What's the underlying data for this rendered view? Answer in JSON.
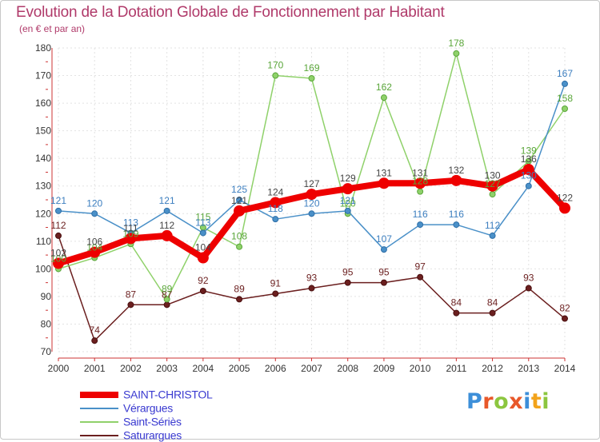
{
  "header": {
    "title": "Evolution de la Dotation Globale de Fonctionnement par Habitant",
    "subtitle": "(en € et par an)"
  },
  "logo": {
    "text": "Proxiti",
    "colors": [
      "#3d8fd9",
      "#e8582a",
      "#8cc63f",
      "#e8582a",
      "#3d8fd9",
      "#f2a31b",
      "#8cc63f"
    ]
  },
  "chart_data": {
    "type": "line",
    "title": "Evolution de la Dotation Globale de Fonctionnement par Habitant",
    "subtitle": "(en € et par an)",
    "xlabel": "",
    "ylabel": "",
    "x": [
      "2000",
      "2001",
      "2002",
      "2003",
      "2004",
      "2005",
      "2006",
      "2007",
      "2008",
      "2009",
      "2010",
      "2011",
      "2012",
      "2013",
      "2014"
    ],
    "ylim": [
      70,
      180
    ],
    "yticks": [
      70,
      80,
      90,
      100,
      110,
      120,
      130,
      140,
      150,
      160,
      170,
      180
    ],
    "grid": true,
    "legend": "bottom-left",
    "series": [
      {
        "name": "SAINT-CHRISTOL",
        "color": "#ee0000",
        "values": [
          102,
          106,
          111,
          112,
          104,
          121,
          124,
          127,
          129,
          131,
          131,
          132,
          130,
          136,
          122
        ]
      },
      {
        "name": "Vérargues",
        "color": "#4a90c8",
        "values": [
          121,
          120,
          113,
          121,
          113,
          125,
          118,
          120,
          121,
          107,
          116,
          116,
          112,
          130,
          167
        ]
      },
      {
        "name": "Saint-Sériès",
        "color": "#8fd16a",
        "values": [
          100,
          104,
          109,
          89,
          115,
          108,
          170,
          169,
          120,
          162,
          128,
          178,
          127,
          139,
          158
        ]
      },
      {
        "name": "Saturargues",
        "color": "#6b1f1f",
        "values": [
          112,
          74,
          87,
          87,
          92,
          89,
          91,
          93,
          95,
          95,
          97,
          84,
          84,
          93,
          82
        ]
      }
    ],
    "data_labels": [
      {
        "series": "SAINT-CHRISTOL",
        "labels": [
          "102",
          "106",
          "111",
          "112",
          "104",
          "121",
          "124",
          "127",
          "129",
          "131",
          "131",
          "132",
          "130",
          "136",
          "122"
        ]
      },
      {
        "series": "Vérargues",
        "labels": [
          "121",
          "120",
          "113",
          "121",
          "113",
          "125",
          "118",
          "120",
          "121",
          "107",
          "116",
          "116",
          "112",
          "130",
          "167"
        ]
      },
      {
        "series": "Saint-Sériès",
        "labels": [
          "100",
          "104",
          "109",
          "89",
          "115",
          "108",
          "170",
          "169",
          "120",
          "162",
          "128",
          "178",
          "127",
          "139",
          "158"
        ]
      },
      {
        "series": "Saturargues",
        "labels": [
          "112",
          "74",
          "87",
          "87",
          "92",
          "89",
          "91",
          "93",
          "95",
          "95",
          "97",
          "84",
          "84",
          "93",
          "82"
        ]
      }
    ]
  }
}
